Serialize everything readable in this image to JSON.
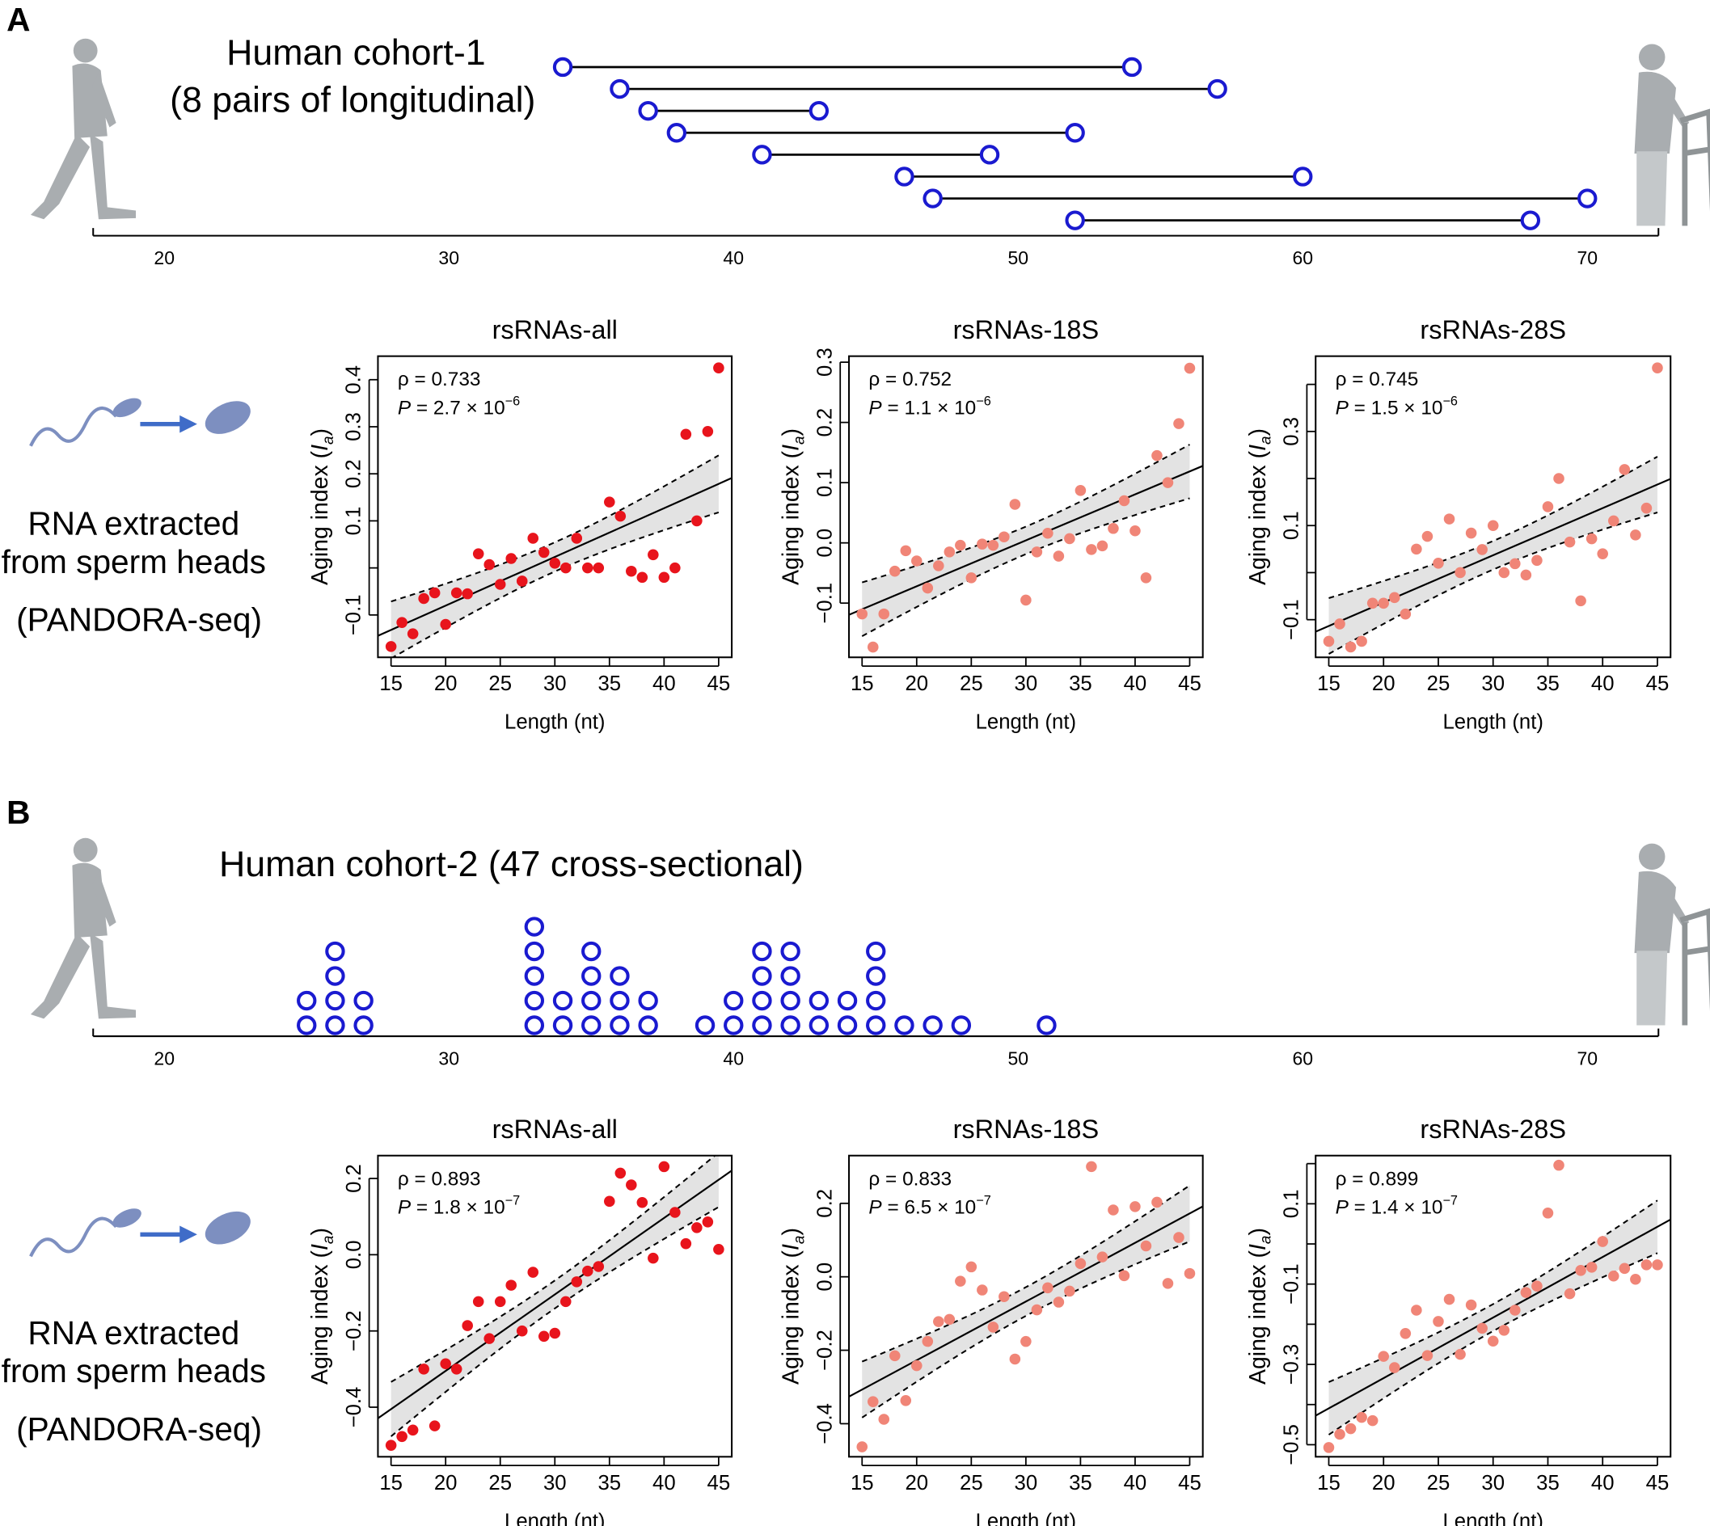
{
  "colors": {
    "timeline_circle": "#1a1ad0",
    "all_points": "#e8141c",
    "subset_points": "#f08577",
    "band": "#e3e3e3",
    "icon_grey": "#a9adb0",
    "sperm": "#7d8fc0",
    "arrow": "#3f6cc8"
  },
  "icons": [
    "young-man-walking-icon",
    "elderly-man-with-walker-icon",
    "sperm-icon",
    "arrow-right-icon",
    "sperm-head-icon"
  ],
  "panels": [
    {
      "letter": "A",
      "cohort_title_line1": "Human cohort-1",
      "cohort_title_line2": "(8 pairs of longitudinal)",
      "method_lines": [
        "RNA extracted",
        "from sperm heads",
        "(PANDORA-seq)"
      ],
      "timeline": {
        "type": "dumbbell",
        "xlim": [
          17.5,
          72.5
        ],
        "ticks": [
          20,
          30,
          40,
          50,
          60,
          70
        ],
        "pairs": [
          [
            34,
            54
          ],
          [
            36,
            57
          ],
          [
            37,
            43
          ],
          [
            38,
            52
          ],
          [
            41,
            49
          ],
          [
            46,
            60
          ],
          [
            47,
            70
          ],
          [
            52,
            68
          ]
        ]
      }
    },
    {
      "letter": "B",
      "cohort_title_line1": "Human cohort-2 (47 cross-sectional)",
      "cohort_title_line2": "",
      "method_lines": [
        "RNA extracted",
        "from sperm heads",
        "(PANDORA-seq)"
      ],
      "timeline": {
        "type": "dot-stack",
        "xlim": [
          17.5,
          72.5
        ],
        "ticks": [
          20,
          30,
          40,
          50,
          60,
          70
        ],
        "counts": {
          "25": 2,
          "26": 4,
          "27": 2,
          "33": 5,
          "34": 2,
          "35": 4,
          "36": 3,
          "37": 2,
          "39": 1,
          "40": 2,
          "41": 4,
          "42": 4,
          "43": 2,
          "44": 2,
          "45": 4,
          "46": 1,
          "47": 1,
          "48": 1,
          "51": 1
        }
      }
    }
  ],
  "chart_data": [
    {
      "panel": "A",
      "type": "scatter",
      "title": "rsRNAs-all",
      "xlabel": "Length (nt)",
      "ylabel": "Aging index",
      "ylabel_symbol": "I",
      "ylabel_sub": "a",
      "rho": "ρ = 0.733",
      "p_mantissa": "P = 2.7 × 10",
      "p_exponent": "−6",
      "color_key": "all_points",
      "xlim": [
        13.8,
        46.2
      ],
      "ylim": [
        -0.19,
        0.45
      ],
      "xticks": [
        15,
        20,
        25,
        30,
        35,
        40,
        45
      ],
      "yticks": [
        -0.1,
        0,
        0.1,
        0.2,
        0.3,
        0.4
      ],
      "yticklabels": [
        "−0.1",
        "",
        "0.1",
        "0.2",
        "0.3",
        "0.4"
      ],
      "x": [
        15,
        16,
        17,
        18,
        19,
        20,
        21,
        22,
        23,
        24,
        25,
        26,
        27,
        28,
        29,
        30,
        31,
        32,
        33,
        34,
        35,
        36,
        37,
        38,
        39,
        40,
        41,
        42,
        43,
        44,
        45
      ],
      "y": [
        -0.167,
        -0.116,
        -0.14,
        -0.065,
        -0.053,
        -0.12,
        -0.053,
        -0.055,
        0.03,
        0.007,
        -0.035,
        0.02,
        -0.028,
        0.063,
        0.033,
        0.01,
        0,
        0.063,
        0,
        0,
        0.14,
        0.11,
        -0.007,
        -0.02,
        0.028,
        -0.02,
        0,
        0.284,
        0.1,
        0.29,
        0.425
      ]
    },
    {
      "panel": "A",
      "type": "scatter",
      "title": "rsRNAs-18S",
      "xlabel": "Length (nt)",
      "ylabel": "Aging index",
      "ylabel_symbol": "I",
      "ylabel_sub": "a",
      "rho": "ρ = 0.752",
      "p_mantissa": "P = 1.1 × 10",
      "p_exponent": "−6",
      "color_key": "subset_points",
      "xlim": [
        13.8,
        46.2
      ],
      "ylim": [
        -0.19,
        0.31
      ],
      "xticks": [
        15,
        20,
        25,
        30,
        35,
        40,
        45
      ],
      "yticks": [
        -0.1,
        0,
        0.1,
        0.2,
        0.3
      ],
      "yticklabels": [
        "−0.1",
        "0.0",
        "0.1",
        "0.2",
        "0.3"
      ],
      "x": [
        15,
        16,
        17,
        18,
        19,
        20,
        21,
        22,
        23,
        24,
        25,
        26,
        27,
        28,
        29,
        30,
        31,
        32,
        33,
        34,
        35,
        36,
        37,
        38,
        39,
        40,
        41,
        42,
        43,
        44,
        45
      ],
      "y": [
        -0.118,
        -0.173,
        -0.118,
        -0.047,
        -0.013,
        -0.03,
        -0.075,
        -0.038,
        -0.015,
        -0.004,
        -0.058,
        -0.002,
        -0.004,
        0.01,
        0.064,
        -0.095,
        -0.015,
        0.016,
        -0.022,
        0.007,
        0.087,
        -0.011,
        -0.005,
        0.024,
        0.07,
        0.02,
        -0.058,
        0.145,
        0.1,
        0.198,
        0.29
      ]
    },
    {
      "panel": "A",
      "type": "scatter",
      "title": "rsRNAs-28S",
      "xlabel": "Length (nt)",
      "ylabel": "Aging index",
      "ylabel_symbol": "I",
      "ylabel_sub": "a",
      "rho": "ρ = 0.745",
      "p_mantissa": "P = 1.5 × 10",
      "p_exponent": "−6",
      "color_key": "subset_points",
      "xlim": [
        13.8,
        46.2
      ],
      "ylim": [
        -0.18,
        0.46
      ],
      "xticks": [
        15,
        20,
        25,
        30,
        35,
        40,
        45
      ],
      "yticks": [
        -0.1,
        0,
        0.1,
        0.2,
        0.3,
        0.4
      ],
      "yticklabels": [
        "−0.1",
        "",
        "0.1",
        "",
        "0.3",
        ""
      ],
      "x": [
        15,
        16,
        17,
        18,
        19,
        20,
        21,
        22,
        23,
        24,
        25,
        26,
        27,
        28,
        29,
        30,
        31,
        32,
        33,
        34,
        35,
        36,
        37,
        38,
        39,
        40,
        41,
        42,
        43,
        44,
        45
      ],
      "y": [
        -0.146,
        -0.109,
        -0.158,
        -0.146,
        -0.065,
        -0.065,
        -0.053,
        -0.088,
        0.05,
        0.077,
        0.02,
        0.114,
        0,
        0.084,
        0.049,
        0.1,
        0,
        0.019,
        -0.005,
        0.026,
        0.14,
        0.2,
        0.065,
        -0.06,
        0.072,
        0.04,
        0.11,
        0.219,
        0.08,
        0.137,
        0.435
      ]
    },
    {
      "panel": "B",
      "type": "scatter",
      "title": "rsRNAs-all",
      "xlabel": "Length (nt)",
      "ylabel": "Aging index",
      "ylabel_symbol": "I",
      "ylabel_sub": "a",
      "rho": "ρ = 0.893",
      "p_mantissa": "P = 1.8 × 10",
      "p_exponent": "−7",
      "color_key": "all_points",
      "xlim": [
        13.8,
        46.2
      ],
      "ylim": [
        -0.53,
        0.26
      ],
      "xticks": [
        15,
        20,
        25,
        30,
        35,
        40,
        45
      ],
      "yticks": [
        -0.4,
        -0.2,
        0,
        0.2
      ],
      "yticklabels": [
        "−0.4",
        "−0.2",
        "0.0",
        "0.2"
      ],
      "x": [
        15,
        16,
        17,
        18,
        19,
        20,
        21,
        22,
        23,
        24,
        25,
        26,
        27,
        28,
        29,
        30,
        31,
        32,
        33,
        34,
        35,
        36,
        37,
        38,
        39,
        40,
        41,
        42,
        43,
        44,
        45
      ],
      "y": [
        -0.5,
        -0.477,
        -0.46,
        -0.3,
        -0.449,
        -0.286,
        -0.3,
        -0.186,
        -0.123,
        -0.22,
        -0.123,
        -0.08,
        -0.2,
        -0.046,
        -0.214,
        -0.206,
        -0.123,
        -0.071,
        -0.043,
        -0.031,
        0.14,
        0.214,
        0.183,
        0.137,
        -0.009,
        0.231,
        0.111,
        0.029,
        0.071,
        0.086,
        0.014
      ]
    },
    {
      "panel": "B",
      "type": "scatter",
      "title": "rsRNAs-18S",
      "xlabel": "Length (nt)",
      "ylabel": "Aging index",
      "ylabel_symbol": "I",
      "ylabel_sub": "a",
      "rho": "ρ = 0.833",
      "p_mantissa": "P = 6.5 × 10",
      "p_exponent": "−7",
      "color_key": "subset_points",
      "xlim": [
        13.8,
        46.2
      ],
      "ylim": [
        -0.49,
        0.33
      ],
      "xticks": [
        15,
        20,
        25,
        30,
        35,
        40,
        45
      ],
      "yticks": [
        -0.4,
        -0.2,
        0,
        0.2
      ],
      "yticklabels": [
        "−0.4",
        "−0.2",
        "0.0",
        "0.2"
      ],
      "x": [
        15,
        16,
        17,
        18,
        19,
        20,
        21,
        22,
        23,
        24,
        25,
        26,
        27,
        28,
        29,
        30,
        31,
        32,
        33,
        34,
        35,
        36,
        37,
        38,
        39,
        40,
        41,
        42,
        43,
        44,
        45
      ],
      "y": [
        -0.463,
        -0.34,
        -0.388,
        -0.215,
        -0.337,
        -0.242,
        -0.176,
        -0.122,
        -0.116,
        -0.012,
        0.027,
        -0.036,
        -0.137,
        -0.054,
        -0.224,
        -0.176,
        -0.09,
        -0.03,
        -0.069,
        -0.039,
        0.036,
        0.3,
        0.054,
        0.182,
        0.003,
        0.191,
        0.084,
        0.203,
        -0.018,
        0.107,
        0.009
      ]
    },
    {
      "panel": "B",
      "type": "scatter",
      "title": "rsRNAs-28S",
      "xlabel": "Length (nt)",
      "ylabel": "Aging index",
      "ylabel_symbol": "I",
      "ylabel_sub": "a",
      "rho": "ρ = 0.899",
      "p_mantissa": "P = 1.4 × 10",
      "p_exponent": "−7",
      "color_key": "subset_points",
      "xlim": [
        13.8,
        46.2
      ],
      "ylim": [
        -0.53,
        0.22
      ],
      "xticks": [
        15,
        20,
        25,
        30,
        35,
        40,
        45
      ],
      "yticks": [
        -0.5,
        -0.4,
        -0.3,
        -0.2,
        -0.1,
        0,
        0.1,
        0.2
      ],
      "yticklabels": [
        "−0.5",
        "",
        "−0.3",
        "",
        "−0.1",
        "",
        "0.1",
        ""
      ],
      "x": [
        15,
        16,
        17,
        18,
        19,
        20,
        21,
        22,
        23,
        24,
        25,
        26,
        27,
        28,
        29,
        30,
        31,
        32,
        33,
        34,
        35,
        36,
        37,
        38,
        39,
        40,
        41,
        42,
        43,
        44,
        45
      ],
      "y": [
        -0.507,
        -0.474,
        -0.46,
        -0.432,
        -0.44,
        -0.28,
        -0.308,
        -0.223,
        -0.165,
        -0.278,
        -0.193,
        -0.138,
        -0.275,
        -0.152,
        -0.21,
        -0.242,
        -0.215,
        -0.165,
        -0.121,
        -0.105,
        0.077,
        0.196,
        -0.124,
        -0.066,
        -0.058,
        0.006,
        -0.08,
        -0.061,
        -0.088,
        -0.052,
        -0.052
      ]
    }
  ]
}
